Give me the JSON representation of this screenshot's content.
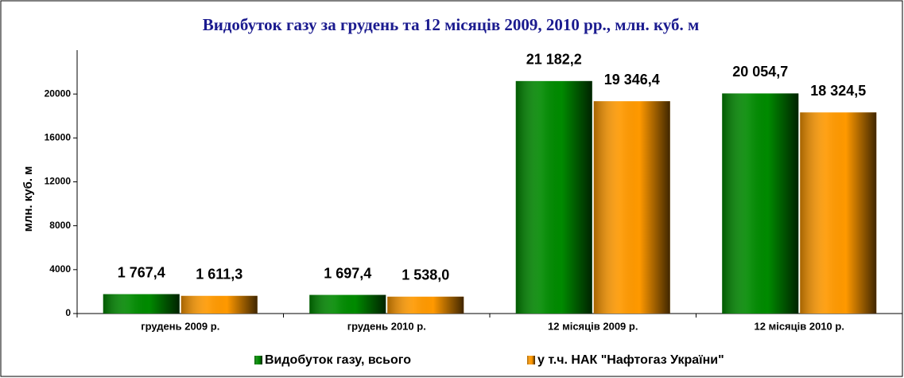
{
  "chart_data": {
    "type": "bar",
    "title": "Видобуток газу за грудень та 12 місяців 2009, 2010 рр.,  млн. куб. м",
    "y_label": "млн. куб. м",
    "categories": [
      "грудень 2009 р.",
      "грудень 2010 р.",
      "12 місяців 2009 р.",
      "12 місяців 2010 р."
    ],
    "series": [
      {
        "name": "Видобуток газу, всього",
        "color": "#008a00",
        "values": [
          1767.4,
          1697.4,
          21182.2,
          20054.7
        ],
        "value_labels": [
          "1 767,4",
          "1 697,4",
          "21 182,2",
          "20 054,7"
        ]
      },
      {
        "name": "у т.ч. НАК \"Нафтогаз України\"",
        "color": "#ff9900",
        "values": [
          1611.3,
          1538.0,
          19346.4,
          18324.5
        ],
        "value_labels": [
          "1 611,3",
          "1 538,0",
          "19 346,4",
          "18 324,5"
        ]
      }
    ],
    "ylim": [
      0,
      24000
    ],
    "yticks": [
      0,
      4000,
      8000,
      12000,
      16000,
      20000
    ],
    "grid": false,
    "legend": "bottom"
  }
}
